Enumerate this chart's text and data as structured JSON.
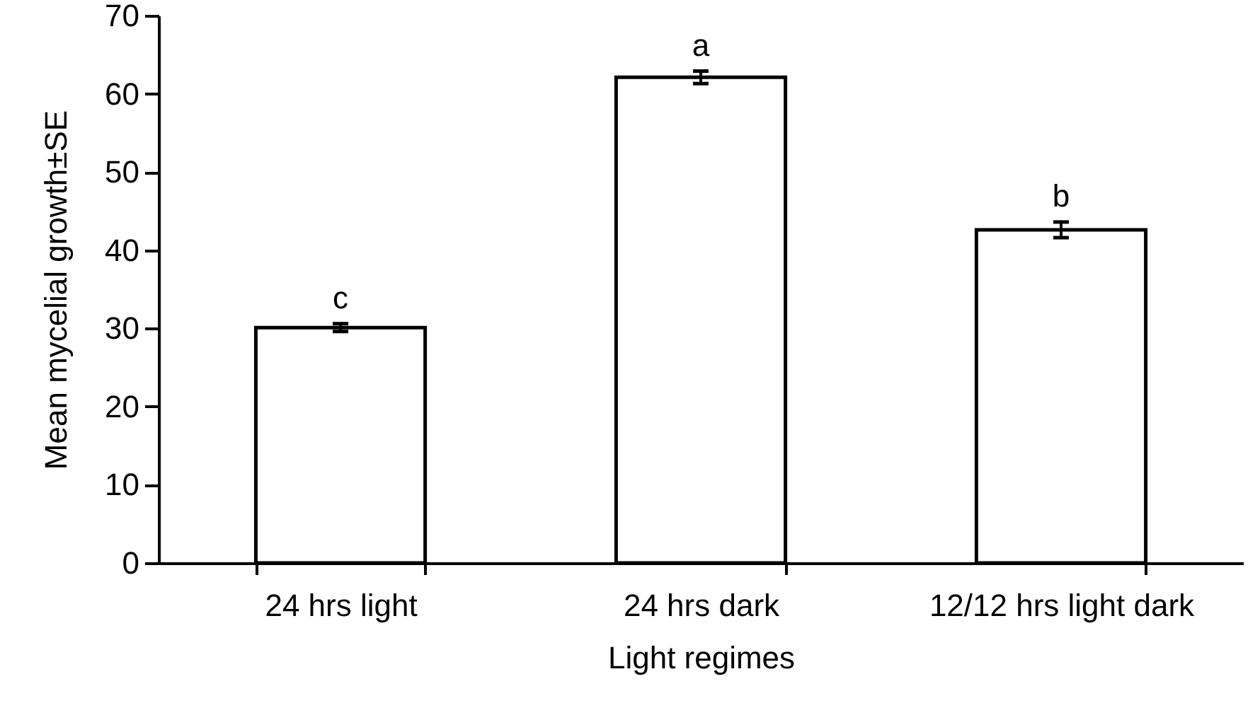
{
  "chart_data": {
    "type": "bar",
    "xlabel": "Light regimes",
    "ylabel": "Mean mycelial growth±SE",
    "categories": [
      "24 hrs light",
      "24 hrs dark",
      "12/12 hrs light dark"
    ],
    "values": [
      30.1,
      62.1,
      42.6
    ],
    "errors": [
      0.5,
      0.8,
      1.0
    ],
    "color": "#ffffff",
    "ylim": [
      0,
      70
    ],
    "yticks": [
      0,
      10,
      20,
      30,
      40,
      50,
      60,
      70
    ],
    "grid": false,
    "annotations": [
      {
        "text": "c",
        "x": "24 hrs light",
        "y": 30.6
      },
      {
        "text": "a",
        "x": "24 hrs dark",
        "y": 62.9
      },
      {
        "text": "b",
        "x": "12/12 hrs light dark",
        "y": 43.6
      }
    ]
  }
}
